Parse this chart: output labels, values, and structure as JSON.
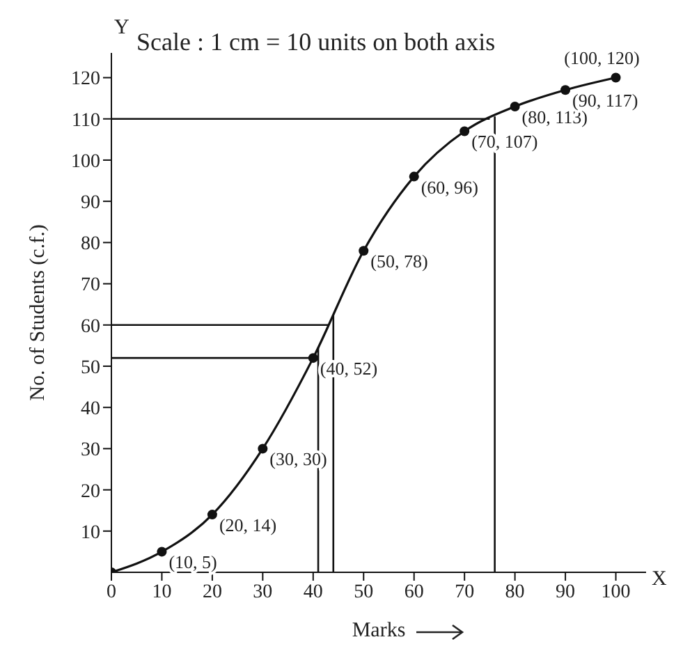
{
  "chart_data": {
    "type": "line",
    "xlabel": "Marks",
    "ylabel": "No. of Students (c.f.)",
    "annotations": [
      "Scale : 1 cm = 10 units on both axis",
      "X",
      "Y"
    ],
    "x": [
      0,
      10,
      20,
      30,
      40,
      50,
      60,
      70,
      80,
      90,
      100
    ],
    "series": [
      {
        "color": "#111111",
        "values": [
          0,
          5,
          14,
          30,
          52,
          78,
          96,
          107,
          113,
          117,
          120
        ],
        "value_labels": [
          null,
          "(10, 5)",
          "(20, 14)",
          "(30, 30)",
          "(40, 52)",
          "(50, 78)",
          "(60, 96)",
          "(70, 107)",
          "(80, 113)",
          "(90, 117)",
          "(100, 120)"
        ]
      }
    ],
    "xlim": [
      0,
      106
    ],
    "ylim": [
      0,
      126
    ],
    "xticks": [
      0,
      10,
      20,
      30,
      40,
      50,
      60,
      70,
      80,
      90,
      100
    ],
    "yticks": [
      10,
      20,
      30,
      40,
      50,
      60,
      70,
      80,
      90,
      100,
      110,
      120
    ],
    "ref_lines": [
      {
        "axis": "y",
        "value": 110,
        "color": "#111111"
      },
      {
        "axis": "x",
        "value": 76,
        "color": "#111111"
      },
      {
        "axis": "y",
        "value": 60,
        "color": "#111111"
      },
      {
        "axis": "x",
        "value": 44,
        "color": "#111111"
      },
      {
        "axis": "y",
        "value": 52,
        "color": "#111111"
      },
      {
        "axis": "x",
        "value": 41,
        "color": "#111111"
      }
    ],
    "grid": false,
    "legend": false,
    "marker": "circle",
    "line_style": "solid"
  }
}
